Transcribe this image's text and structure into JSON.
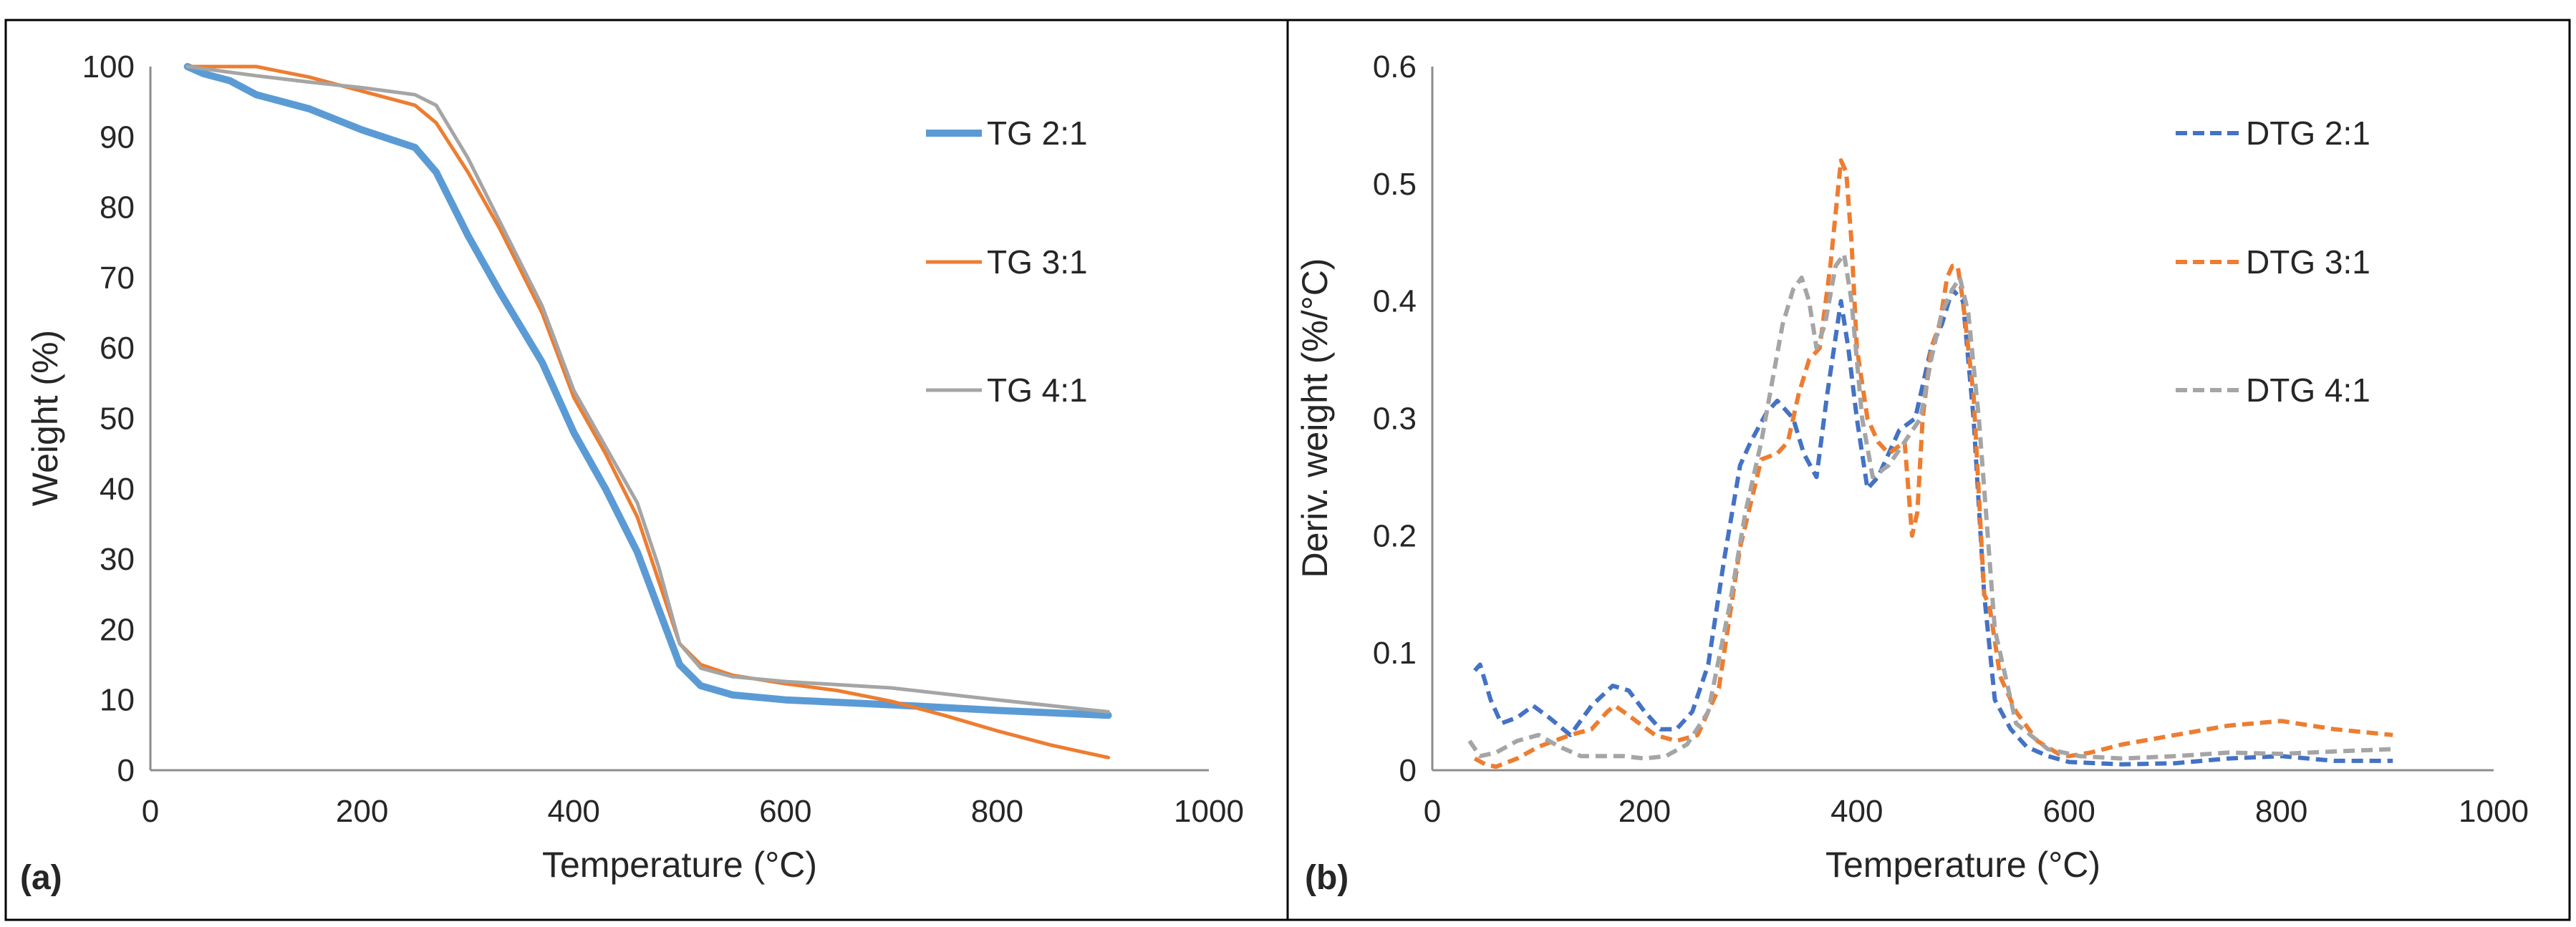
{
  "chart_data": [
    {
      "panel": "(a)",
      "type": "line",
      "title": "",
      "xlabel": "Temperature (°C)",
      "ylabel": "Weight (%)",
      "xlim": [
        0,
        1000
      ],
      "ylim": [
        0,
        100
      ],
      "xticks": [
        0,
        200,
        400,
        600,
        800,
        1000
      ],
      "yticks": [
        0,
        10,
        20,
        30,
        40,
        50,
        60,
        70,
        80,
        90,
        100
      ],
      "grid": false,
      "legend_position": "right",
      "series": [
        {
          "name": "TG 2:1",
          "color": "#5B9BD5",
          "style": "solid-thick",
          "x": [
            35,
            50,
            75,
            100,
            150,
            200,
            250,
            270,
            300,
            330,
            370,
            400,
            430,
            460,
            480,
            500,
            520,
            550,
            600,
            700,
            800,
            905
          ],
          "y": [
            100,
            99,
            98,
            96,
            94,
            91,
            88.5,
            85,
            76,
            68,
            58,
            48,
            40,
            31,
            23,
            15,
            12,
            10.7,
            10,
            9.3,
            8.5,
            7.8
          ]
        },
        {
          "name": "TG 3:1",
          "color": "#ED7D31",
          "style": "solid",
          "x": [
            35,
            100,
            150,
            200,
            250,
            270,
            300,
            330,
            370,
            400,
            430,
            460,
            480,
            500,
            520,
            550,
            600,
            650,
            700,
            750,
            800,
            850,
            905
          ],
          "y": [
            100,
            100,
            98.5,
            96.5,
            94.5,
            92,
            85,
            77,
            65,
            53,
            45,
            36,
            27,
            18,
            15,
            13.5,
            12.3,
            11.3,
            9.8,
            7.8,
            5.6,
            3.6,
            1.8
          ]
        },
        {
          "name": "TG 4:1",
          "color": "#A5A5A5",
          "style": "solid",
          "x": [
            35,
            100,
            150,
            200,
            250,
            270,
            300,
            330,
            370,
            400,
            430,
            460,
            480,
            500,
            520,
            550,
            600,
            700,
            800,
            905
          ],
          "y": [
            100,
            98.7,
            97.8,
            97,
            96,
            94.5,
            87,
            78,
            66,
            54,
            46,
            38,
            29,
            18,
            14.5,
            13.3,
            12.6,
            11.7,
            10,
            8.3
          ]
        }
      ]
    },
    {
      "panel": "(b)",
      "type": "line",
      "title": "",
      "xlabel": "Temperature (°C)",
      "ylabel": "Deriv. weight (%/°C)",
      "xlim": [
        0,
        1000
      ],
      "ylim": [
        0,
        0.6
      ],
      "xticks": [
        0,
        200,
        400,
        600,
        800,
        1000
      ],
      "yticks": [
        0,
        0.1,
        0.2,
        0.3,
        0.4,
        0.5,
        0.6
      ],
      "ytick_labels": [
        "0",
        "0.1",
        "0.2",
        "0.3",
        "0.4",
        "0.5",
        "0.6"
      ],
      "grid": false,
      "legend_position": "right",
      "series": [
        {
          "name": "DTG 2:1",
          "color": "#4472C4",
          "style": "dashed",
          "x": [
            40,
            45,
            55,
            65,
            80,
            95,
            110,
            130,
            150,
            170,
            185,
            200,
            215,
            230,
            245,
            260,
            275,
            290,
            300,
            315,
            325,
            340,
            350,
            362,
            372,
            385,
            392,
            400,
            410,
            420,
            440,
            455,
            470,
            480,
            490,
            500,
            510,
            520,
            530,
            545,
            560,
            580,
            600,
            650,
            700,
            750,
            800,
            850,
            905
          ],
          "y": [
            0.085,
            0.09,
            0.06,
            0.04,
            0.045,
            0.055,
            0.045,
            0.03,
            0.055,
            0.072,
            0.068,
            0.05,
            0.035,
            0.035,
            0.05,
            0.09,
            0.18,
            0.26,
            0.28,
            0.305,
            0.315,
            0.3,
            0.27,
            0.25,
            0.32,
            0.4,
            0.36,
            0.3,
            0.24,
            0.25,
            0.29,
            0.3,
            0.36,
            0.38,
            0.41,
            0.4,
            0.3,
            0.15,
            0.06,
            0.035,
            0.02,
            0.012,
            0.007,
            0.005,
            0.006,
            0.01,
            0.012,
            0.008,
            0.008
          ]
        },
        {
          "name": "DTG 3:1",
          "color": "#ED7D31",
          "style": "dashed",
          "x": [
            40,
            50,
            60,
            80,
            100,
            130,
            150,
            165,
            172,
            180,
            195,
            210,
            230,
            250,
            270,
            290,
            310,
            325,
            335,
            345,
            355,
            365,
            375,
            385,
            390,
            395,
            400,
            410,
            420,
            430,
            445,
            452,
            457,
            462,
            470,
            478,
            485,
            490,
            495,
            500,
            510,
            520,
            525,
            535,
            550,
            570,
            590,
            600,
            620,
            650,
            700,
            750,
            800,
            850,
            905
          ],
          "y": [
            0.01,
            0.005,
            0.003,
            0.01,
            0.02,
            0.03,
            0.035,
            0.05,
            0.055,
            0.05,
            0.04,
            0.03,
            0.025,
            0.03,
            0.07,
            0.19,
            0.265,
            0.27,
            0.28,
            0.32,
            0.35,
            0.36,
            0.43,
            0.52,
            0.51,
            0.45,
            0.36,
            0.3,
            0.28,
            0.27,
            0.28,
            0.2,
            0.22,
            0.3,
            0.36,
            0.38,
            0.42,
            0.43,
            0.43,
            0.4,
            0.32,
            0.15,
            0.14,
            0.08,
            0.05,
            0.025,
            0.014,
            0.012,
            0.015,
            0.022,
            0.03,
            0.038,
            0.042,
            0.035,
            0.03
          ]
        },
        {
          "name": "DTG 4:1",
          "color": "#A5A5A5",
          "style": "dashed",
          "x": [
            35,
            45,
            60,
            80,
            100,
            120,
            140,
            160,
            180,
            200,
            220,
            240,
            260,
            280,
            295,
            310,
            320,
            330,
            340,
            348,
            355,
            362,
            370,
            380,
            388,
            395,
            405,
            415,
            430,
            445,
            460,
            470,
            480,
            490,
            497,
            505,
            515,
            530,
            550,
            580,
            610,
            650,
            700,
            750,
            800,
            850,
            905
          ],
          "y": [
            0.025,
            0.012,
            0.015,
            0.025,
            0.03,
            0.02,
            0.012,
            0.012,
            0.012,
            0.01,
            0.012,
            0.022,
            0.05,
            0.14,
            0.22,
            0.28,
            0.33,
            0.38,
            0.41,
            0.42,
            0.4,
            0.36,
            0.38,
            0.43,
            0.44,
            0.4,
            0.3,
            0.25,
            0.26,
            0.28,
            0.3,
            0.35,
            0.39,
            0.41,
            0.42,
            0.39,
            0.3,
            0.12,
            0.04,
            0.018,
            0.012,
            0.01,
            0.012,
            0.015,
            0.014,
            0.016,
            0.018
          ]
        }
      ]
    }
  ]
}
